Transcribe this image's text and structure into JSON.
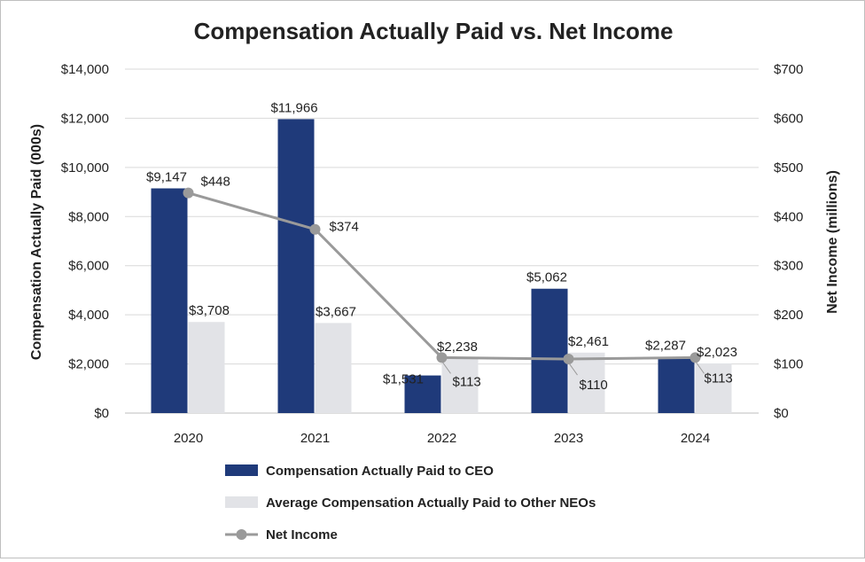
{
  "chart_data": {
    "type": "bar",
    "title": "Compensation Actually Paid vs. Net Income",
    "categories": [
      "2020",
      "2021",
      "2022",
      "2023",
      "2024"
    ],
    "ylabel": "Compensation Actually Paid (000s)",
    "y2label": "Net Income (millions)",
    "ylim": [
      0,
      14000
    ],
    "y2lim": [
      0,
      700
    ],
    "yticks": [
      "$0",
      "$2,000",
      "$4,000",
      "$6,000",
      "$8,000",
      "$10,000",
      "$12,000",
      "$14,000"
    ],
    "y2ticks": [
      "$0",
      "$100",
      "$200",
      "$300",
      "$400",
      "$500",
      "$600",
      "$700"
    ],
    "series": [
      {
        "name": "Compensation Actually Paid to CEO",
        "kind": "bar",
        "axis": "left",
        "color": "#1f3a7a",
        "values": [
          9147,
          11966,
          1531,
          5062,
          2287
        ],
        "labels": [
          "$9,147",
          "$11,966",
          "$1,531",
          "$5,062",
          "$2,287"
        ]
      },
      {
        "name": "Average Compensation Actually Paid to Other NEOs",
        "kind": "bar",
        "axis": "left",
        "color": "#e2e3e7",
        "values": [
          3708,
          3667,
          2238,
          2461,
          2023
        ],
        "labels": [
          "$3,708",
          "$3,667",
          "$2,238",
          "$2,461",
          "$2,023"
        ]
      },
      {
        "name": "Net Income",
        "kind": "line",
        "axis": "right",
        "color": "#9a9a9a",
        "values": [
          448,
          374,
          113,
          110,
          113
        ],
        "labels": [
          "$448",
          "$374",
          "$113",
          "$110",
          "$113"
        ]
      }
    ],
    "legend_position": "bottom"
  }
}
